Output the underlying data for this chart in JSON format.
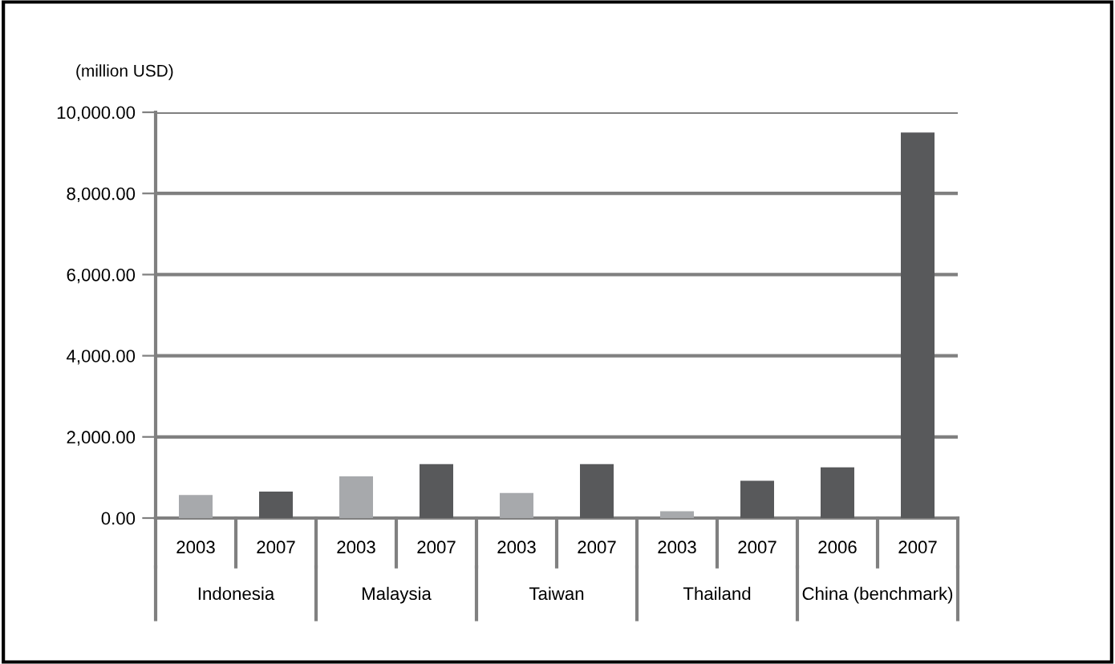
{
  "chart_data": {
    "type": "bar",
    "ylabel": "(million USD)",
    "categories": [
      "2003",
      "2007",
      "2003",
      "2007",
      "2003",
      "2007",
      "2003",
      "2007",
      "2006",
      "2007"
    ],
    "values": [
      570,
      650,
      1030,
      1330,
      620,
      1330,
      170,
      920,
      1250,
      9500
    ],
    "colors": [
      "#a7a9ac",
      "#58595b",
      "#a7a9ac",
      "#58595b",
      "#a7a9ac",
      "#58595b",
      "#a7a9ac",
      "#58595b",
      "#58595b",
      "#58595b"
    ],
    "annotations": [
      "Indonesia",
      "Malaysia",
      "Taiwan",
      "Thailand",
      "China (benchmark)"
    ],
    "ylim": [
      0,
      10000
    ],
    "yticks": [
      {
        "value": 0,
        "label": "0.00"
      },
      {
        "value": 2000,
        "label": "2,000.00"
      },
      {
        "value": 4000,
        "label": "4,000.00"
      },
      {
        "value": 6000,
        "label": "6,000.00"
      },
      {
        "value": 8000,
        "label": "8,000.00"
      },
      {
        "value": 10000,
        "label": "10,000.00"
      }
    ],
    "grid": "y",
    "legend": false
  }
}
